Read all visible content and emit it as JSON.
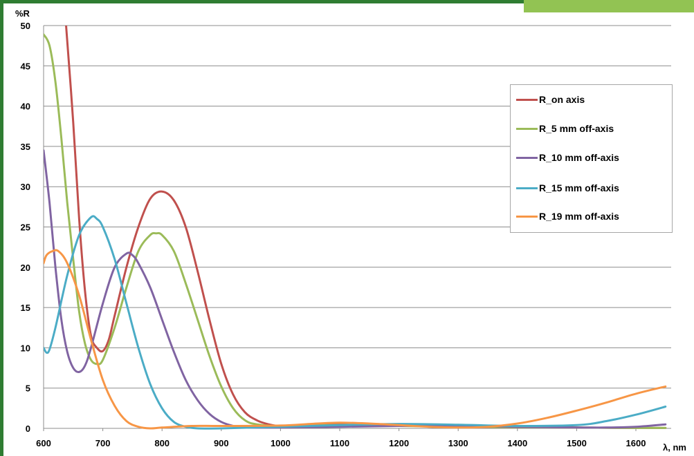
{
  "chart_data": {
    "type": "line",
    "xlabel": "λ, nm",
    "ylabel": "%R",
    "xlim": [
      600,
      1650
    ],
    "ylim": [
      0,
      50
    ],
    "xticks": [
      "600",
      "700",
      "800",
      "900",
      "1000",
      "1100",
      "1200",
      "1300",
      "1400",
      "1500",
      "1600"
    ],
    "yticks": [
      "0",
      "5",
      "10",
      "15",
      "20",
      "25",
      "30",
      "35",
      "40",
      "45",
      "50"
    ],
    "grid": "horizontal",
    "legend": "right",
    "series": [
      {
        "name": "R_on axis",
        "color": "#c0504d",
        "points": [
          [
            628,
            60
          ],
          [
            638,
            50
          ],
          [
            650,
            38
          ],
          [
            660,
            26
          ],
          [
            670,
            17
          ],
          [
            680,
            11.5
          ],
          [
            690,
            10
          ],
          [
            700,
            9.6
          ],
          [
            710,
            11
          ],
          [
            720,
            14
          ],
          [
            740,
            20
          ],
          [
            760,
            25
          ],
          [
            780,
            28.5
          ],
          [
            800,
            29.4
          ],
          [
            820,
            28.3
          ],
          [
            840,
            25
          ],
          [
            860,
            19.5
          ],
          [
            880,
            13.5
          ],
          [
            900,
            8
          ],
          [
            920,
            4.2
          ],
          [
            940,
            2
          ],
          [
            960,
            1
          ],
          [
            980,
            0.5
          ],
          [
            1000,
            0.3
          ],
          [
            1050,
            0.45
          ],
          [
            1100,
            0.6
          ],
          [
            1150,
            0.55
          ],
          [
            1200,
            0.4
          ],
          [
            1300,
            0.2
          ],
          [
            1400,
            0.15
          ],
          [
            1500,
            0.1
          ],
          [
            1600,
            0.05
          ],
          [
            1650,
            0.05
          ]
        ]
      },
      {
        "name": "R_5 mm off-axis",
        "color": "#9bbb59",
        "points": [
          [
            600,
            48.9
          ],
          [
            610,
            47.5
          ],
          [
            620,
            43
          ],
          [
            630,
            36
          ],
          [
            640,
            28
          ],
          [
            650,
            21
          ],
          [
            660,
            14.5
          ],
          [
            670,
            10.5
          ],
          [
            680,
            8.5
          ],
          [
            690,
            8
          ],
          [
            700,
            8.5
          ],
          [
            720,
            12.5
          ],
          [
            740,
            17.5
          ],
          [
            760,
            22
          ],
          [
            780,
            24
          ],
          [
            790,
            24.2
          ],
          [
            800,
            24
          ],
          [
            820,
            22
          ],
          [
            840,
            18
          ],
          [
            860,
            13.5
          ],
          [
            880,
            9
          ],
          [
            900,
            5.2
          ],
          [
            920,
            2.5
          ],
          [
            940,
            1
          ],
          [
            960,
            0.5
          ],
          [
            1000,
            0.3
          ],
          [
            1100,
            0.4
          ],
          [
            1200,
            0.3
          ],
          [
            1300,
            0.2
          ],
          [
            1400,
            0.15
          ],
          [
            1500,
            0.1
          ],
          [
            1600,
            0.05
          ],
          [
            1650,
            0.05
          ]
        ]
      },
      {
        "name": "R_10 mm off-axis",
        "color": "#8064a2",
        "points": [
          [
            600,
            34.5
          ],
          [
            610,
            28
          ],
          [
            620,
            20
          ],
          [
            630,
            13.5
          ],
          [
            640,
            9.5
          ],
          [
            650,
            7.5
          ],
          [
            660,
            7
          ],
          [
            670,
            7.8
          ],
          [
            680,
            10
          ],
          [
            700,
            15.5
          ],
          [
            720,
            20
          ],
          [
            740,
            21.7
          ],
          [
            750,
            21.5
          ],
          [
            760,
            20.5
          ],
          [
            780,
            17.5
          ],
          [
            800,
            13.5
          ],
          [
            820,
            9.5
          ],
          [
            840,
            6
          ],
          [
            860,
            3.5
          ],
          [
            880,
            1.8
          ],
          [
            900,
            0.8
          ],
          [
            920,
            0.3
          ],
          [
            940,
            0.1
          ],
          [
            1000,
            0.1
          ],
          [
            1100,
            0.2
          ],
          [
            1200,
            0.3
          ],
          [
            1300,
            0.35
          ],
          [
            1400,
            0.2
          ],
          [
            1500,
            0.1
          ],
          [
            1550,
            0.1
          ],
          [
            1600,
            0.2
          ],
          [
            1650,
            0.5
          ]
        ]
      },
      {
        "name": "R_15 mm off-axis",
        "color": "#4bacc6",
        "points": [
          [
            600,
            10
          ],
          [
            605,
            9.4
          ],
          [
            610,
            9.8
          ],
          [
            620,
            12.5
          ],
          [
            640,
            19
          ],
          [
            660,
            24
          ],
          [
            680,
            26.2
          ],
          [
            690,
            26
          ],
          [
            700,
            25
          ],
          [
            720,
            21
          ],
          [
            740,
            15.5
          ],
          [
            760,
            10
          ],
          [
            780,
            5.5
          ],
          [
            800,
            2.5
          ],
          [
            820,
            0.8
          ],
          [
            840,
            0.2
          ],
          [
            860,
            0
          ],
          [
            900,
            0
          ],
          [
            1000,
            0.2
          ],
          [
            1100,
            0.4
          ],
          [
            1200,
            0.55
          ],
          [
            1300,
            0.45
          ],
          [
            1400,
            0.3
          ],
          [
            1500,
            0.4
          ],
          [
            1550,
            0.9
          ],
          [
            1600,
            1.7
          ],
          [
            1650,
            2.7
          ]
        ]
      },
      {
        "name": "R_19 mm off-axis",
        "color": "#f79646",
        "points": [
          [
            600,
            20.5
          ],
          [
            605,
            21.5
          ],
          [
            615,
            22
          ],
          [
            625,
            22
          ],
          [
            640,
            20.5
          ],
          [
            660,
            16.5
          ],
          [
            680,
            11
          ],
          [
            700,
            6
          ],
          [
            720,
            2.8
          ],
          [
            740,
            0.9
          ],
          [
            760,
            0.2
          ],
          [
            780,
            0
          ],
          [
            800,
            0.1
          ],
          [
            850,
            0.3
          ],
          [
            900,
            0.3
          ],
          [
            1000,
            0.35
          ],
          [
            1050,
            0.55
          ],
          [
            1100,
            0.7
          ],
          [
            1150,
            0.6
          ],
          [
            1200,
            0.4
          ],
          [
            1250,
            0.2
          ],
          [
            1300,
            0.1
          ],
          [
            1350,
            0.2
          ],
          [
            1400,
            0.6
          ],
          [
            1450,
            1.3
          ],
          [
            1500,
            2.2
          ],
          [
            1550,
            3.2
          ],
          [
            1600,
            4.3
          ],
          [
            1650,
            5.2
          ]
        ]
      }
    ]
  }
}
